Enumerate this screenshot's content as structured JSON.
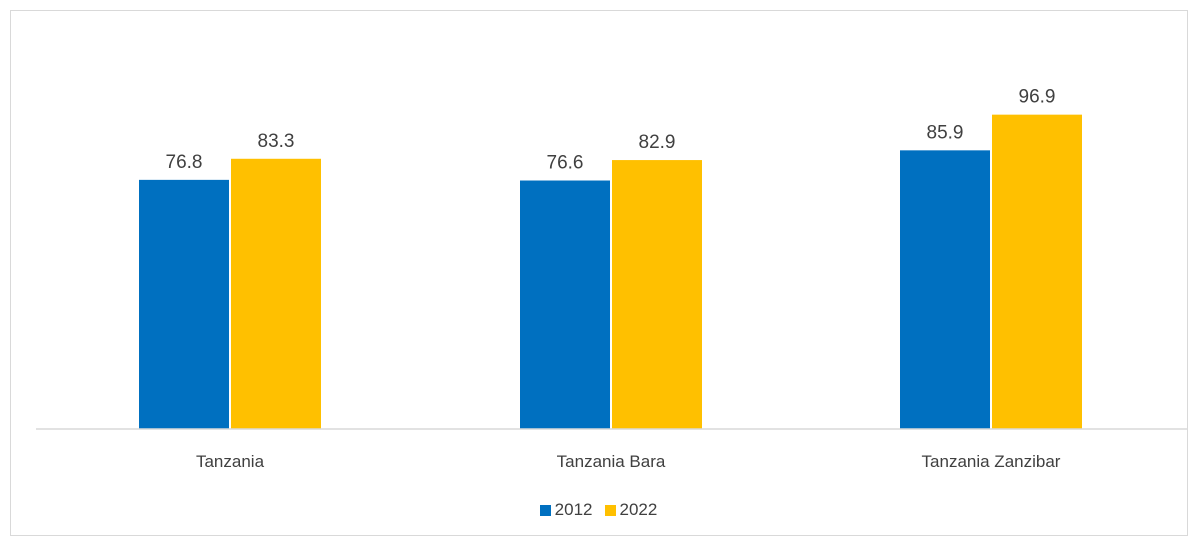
{
  "chart_data": {
    "type": "bar",
    "title": "",
    "xlabel": "",
    "ylabel": "",
    "categories": [
      "Tanzania",
      "Tanzania Bara",
      "Tanzania Zanzibar"
    ],
    "series": [
      {
        "name": "2012",
        "values": [
          76.8,
          76.6,
          85.9
        ],
        "color": "#0070C0"
      },
      {
        "name": "2022",
        "values": [
          83.3,
          82.9,
          96.9
        ],
        "color": "#FFC000"
      }
    ],
    "ylim": [
      0,
      100
    ],
    "grid": false,
    "data_labels": true,
    "legend_position": "bottom"
  },
  "legend": {
    "items": [
      {
        "label": "2012",
        "color": "#0070C0"
      },
      {
        "label": "2022",
        "color": "#FFC000"
      }
    ]
  },
  "colors": {
    "axis": "#d9d9d9",
    "text": "#404040",
    "frame": "#d9d9d9"
  }
}
